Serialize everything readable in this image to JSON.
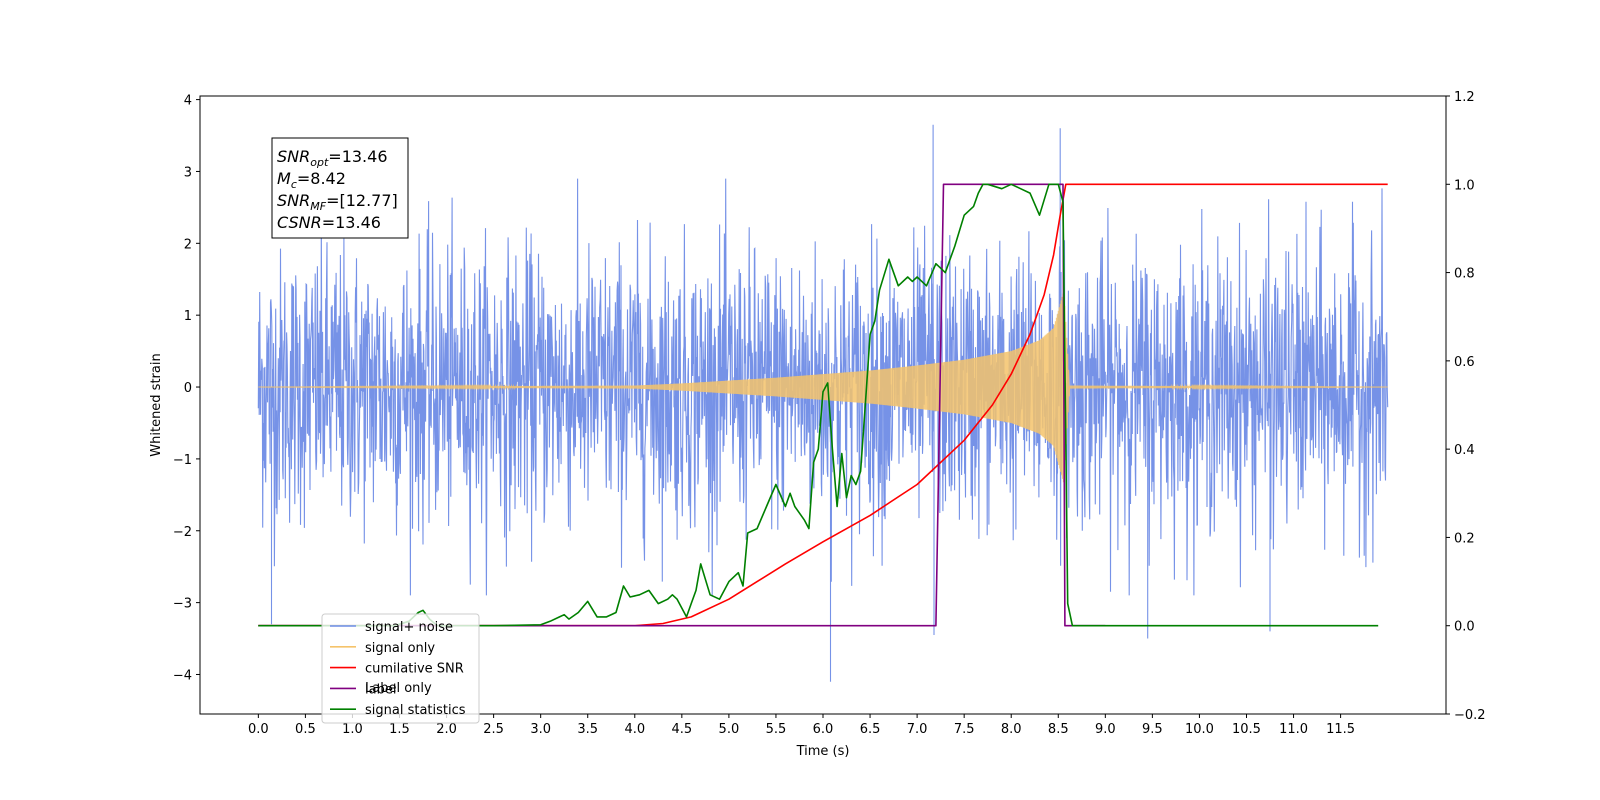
{
  "chart_data": {
    "type": "line",
    "xlabel": "Time (s)",
    "ylabel": "Whitened strain",
    "xlim": [
      -0.62,
      12.62
    ],
    "ylim": [
      -4.55,
      4.05
    ],
    "y2lim": [
      -0.2,
      1.2
    ],
    "x_ticks": [
      0.0,
      0.5,
      1.0,
      1.5,
      2.0,
      2.5,
      3.0,
      3.5,
      4.0,
      4.5,
      5.0,
      5.5,
      6.0,
      6.5,
      7.0,
      7.5,
      8.0,
      8.5,
      9.0,
      9.5,
      10.0,
      10.5,
      11.0,
      11.5
    ],
    "x_tick_labels": [
      "0.0",
      "0.5",
      "1.0",
      "1.5",
      "2.0",
      "2.5",
      "3.0",
      "3.5",
      "4.0",
      "4.5",
      "5.0",
      "5.5",
      "6.0",
      "6.5",
      "7.0",
      "7.5",
      "8.0",
      "8.5",
      "9.0",
      "9.5",
      "10.0",
      "10.5",
      "11.0",
      "11.5"
    ],
    "y_ticks": [
      -4,
      -3,
      -2,
      -1,
      0,
      1,
      2,
      3,
      4
    ],
    "y_tick_labels": [
      "−4",
      "−3",
      "−2",
      "−1",
      "0",
      "1",
      "2",
      "3",
      "4"
    ],
    "y2_ticks": [
      -0.2,
      0.0,
      0.2,
      0.4,
      0.6,
      0.8,
      1.0,
      1.2
    ],
    "y2_tick_labels": [
      "−0.2",
      "0.0",
      "0.2",
      "0.4",
      "0.6",
      "0.8",
      "1.0",
      "1.2"
    ],
    "annotation": [
      {
        "sym": "SNR",
        "sub": "opt",
        "value": "=13.46"
      },
      {
        "sym": "M",
        "sub": "c",
        "value": "=8.42"
      },
      {
        "sym": "SNR",
        "sub": "MF",
        "value": "=[12.77]"
      },
      {
        "sym": "CSNR",
        "sub": "",
        "value": "=13.46"
      }
    ],
    "legend": {
      "placement": "lower-left",
      "entries": [
        {
          "label": "signal+ noise",
          "color": "#6f8ce6"
        },
        {
          "label": "signal only",
          "color": "#f5c36b"
        },
        {
          "label": "cumilative SNR",
          "color": "#ff0000"
        },
        {
          "label": "label",
          "color": "#800080"
        },
        {
          "label": "signal statistics",
          "color": "#008000"
        }
      ],
      "hidden_text": "Label only"
    },
    "series": [
      {
        "name": "signal+ noise",
        "axis": "left",
        "color": "#6f8ce6",
        "style": "whitened noise band, roughly ±2.2 with spikes",
        "x_range": [
          0.0,
          12.0
        ],
        "typical_envelope": [
          -2.2,
          2.2
        ],
        "notable_peaks": [
          {
            "x": 7.17,
            "y": 3.65
          },
          {
            "x": 8.52,
            "y": 3.6
          },
          {
            "x": 6.08,
            "y": -4.1
          },
          {
            "x": 9.45,
            "y": -3.5
          },
          {
            "x": 7.18,
            "y": -3.45
          },
          {
            "x": 10.75,
            "y": -3.4
          },
          {
            "x": 0.14,
            "y": -3.3
          }
        ]
      },
      {
        "name": "signal only",
        "axis": "left",
        "color": "#f5c36b",
        "style": "chirp envelope growing until merger at 8.56",
        "x": [
          0.0,
          4.0,
          4.5,
          5.0,
          5.5,
          6.0,
          6.5,
          7.0,
          7.5,
          8.0,
          8.3,
          8.45,
          8.56,
          8.62,
          12.0
        ],
        "envelope": [
          0.0,
          0.02,
          0.05,
          0.09,
          0.13,
          0.18,
          0.23,
          0.3,
          0.38,
          0.5,
          0.65,
          0.82,
          1.35,
          0.02,
          0.0
        ]
      },
      {
        "name": "cumilative SNR",
        "axis": "right",
        "color": "#ff0000",
        "x": [
          0.0,
          4.0,
          4.3,
          4.6,
          5.0,
          5.3,
          5.6,
          6.0,
          6.5,
          7.0,
          7.5,
          7.8,
          8.0,
          8.2,
          8.35,
          8.45,
          8.52,
          8.58,
          12.0
        ],
        "values": [
          0.0,
          0.0,
          0.005,
          0.02,
          0.06,
          0.1,
          0.14,
          0.19,
          0.25,
          0.32,
          0.42,
          0.5,
          0.57,
          0.66,
          0.75,
          0.84,
          0.93,
          1.0,
          1.0
        ]
      },
      {
        "name": "label",
        "axis": "right",
        "color": "#800080",
        "x": [
          0.0,
          7.2,
          7.28,
          8.55,
          8.57,
          9.0
        ],
        "values": [
          0.0,
          0.0,
          1.0,
          1.0,
          0.0,
          0.0
        ]
      },
      {
        "name": "signal statistics",
        "axis": "right",
        "color": "#008000",
        "x": [
          0.0,
          1.45,
          1.6,
          1.7,
          1.75,
          1.82,
          1.9,
          2.5,
          3.0,
          3.1,
          3.2,
          3.25,
          3.3,
          3.4,
          3.5,
          3.6,
          3.7,
          3.8,
          3.88,
          3.95,
          4.05,
          4.15,
          4.25,
          4.35,
          4.4,
          4.45,
          4.55,
          4.6,
          4.65,
          4.7,
          4.8,
          4.9,
          5.0,
          5.1,
          5.15,
          5.2,
          5.3,
          5.4,
          5.5,
          5.6,
          5.65,
          5.7,
          5.8,
          5.85,
          5.9,
          5.95,
          6.0,
          6.05,
          6.1,
          6.15,
          6.2,
          6.25,
          6.3,
          6.35,
          6.4,
          6.45,
          6.5,
          6.55,
          6.6,
          6.7,
          6.8,
          6.9,
          6.95,
          7.0,
          7.1,
          7.2,
          7.3,
          7.4,
          7.5,
          7.6,
          7.65,
          7.7,
          7.75,
          7.9,
          8.0,
          8.1,
          8.2,
          8.3,
          8.4,
          8.5,
          8.55,
          8.6,
          8.65,
          11.9
        ],
        "values": [
          0.0,
          0.0,
          0.01,
          0.03,
          0.035,
          0.015,
          0.0,
          0.0,
          0.002,
          0.01,
          0.02,
          0.025,
          0.015,
          0.03,
          0.055,
          0.02,
          0.02,
          0.03,
          0.09,
          0.065,
          0.07,
          0.08,
          0.05,
          0.06,
          0.07,
          0.06,
          0.02,
          0.05,
          0.08,
          0.14,
          0.07,
          0.06,
          0.1,
          0.12,
          0.09,
          0.21,
          0.22,
          0.27,
          0.32,
          0.27,
          0.3,
          0.27,
          0.24,
          0.22,
          0.37,
          0.4,
          0.53,
          0.55,
          0.4,
          0.27,
          0.39,
          0.29,
          0.34,
          0.32,
          0.35,
          0.5,
          0.66,
          0.69,
          0.76,
          0.83,
          0.77,
          0.79,
          0.78,
          0.79,
          0.77,
          0.82,
          0.8,
          0.86,
          0.93,
          0.95,
          0.98,
          1.0,
          1.0,
          0.99,
          1.0,
          0.99,
          0.98,
          0.93,
          1.0,
          1.0,
          0.96,
          0.05,
          0.0,
          0.0
        ]
      }
    ]
  }
}
